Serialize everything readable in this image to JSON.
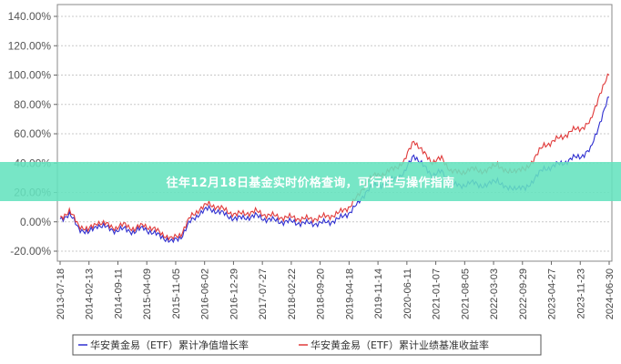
{
  "banner": {
    "title": "往年12月18日基金实时价格查询，可行性与操作指南"
  },
  "colors": {
    "nav_line": "#2f2fd0",
    "benchmark_line": "#e03a3a",
    "banner": "#64e2be",
    "grid": "#c8c8c8",
    "frame": "#888888"
  },
  "chart_data": {
    "type": "line",
    "title": "",
    "xlabel": "",
    "ylabel": "",
    "ylim": [
      -20,
      140
    ],
    "grid": true,
    "legend_position": "bottom",
    "y_ticks": [
      "140.00%",
      "120.00%",
      "100.00%",
      "80.00%",
      "60.00%",
      "40.00%",
      "20.00%",
      "0.00%",
      "-20.00%"
    ],
    "x_ticks": [
      "2013-07-18",
      "2014-02-13",
      "2014-09-11",
      "2015-04-09",
      "2015-11-05",
      "2016-06-02",
      "2016-12-29",
      "2017-07-27",
      "2018-02-22",
      "2018-09-20",
      "2019-04-18",
      "2019-11-14",
      "2020-06-11",
      "2021-01-07",
      "2021-08-05",
      "2022-03-03",
      "2022-09-29",
      "2023-04-27",
      "2023-11-23",
      "2024-06-30"
    ],
    "series": [
      {
        "name": "华安黄金易（ETF）累计净值增长率",
        "color": "#2f2fd0",
        "x": [
          "2013-07-18",
          "2013-09",
          "2013-11",
          "2014-02-13",
          "2014-05",
          "2014-07",
          "2014-09-11",
          "2014-11",
          "2015-02",
          "2015-04-09",
          "2015-06",
          "2015-08",
          "2015-11-05",
          "2015-12",
          "2016-02",
          "2016-04",
          "2016-06-02",
          "2016-08",
          "2016-10",
          "2016-12-29",
          "2017-03",
          "2017-05",
          "2017-07-27",
          "2017-09",
          "2017-12",
          "2018-02-22",
          "2018-05",
          "2018-07",
          "2018-09-20",
          "2018-12",
          "2019-02",
          "2019-04-18",
          "2019-06",
          "2019-08",
          "2019-11-14",
          "2020-01",
          "2020-03",
          "2020-06-11",
          "2020-08",
          "2020-10",
          "2021-01-07",
          "2021-03",
          "2021-06",
          "2021-08-05",
          "2021-10",
          "2021-12",
          "2022-03-03",
          "2022-05",
          "2022-07",
          "2022-09-29",
          "2022-12",
          "2023-02",
          "2023-04-27",
          "2023-06",
          "2023-09",
          "2023-11-23",
          "2024-01",
          "2024-03",
          "2024-05",
          "2024-06-30"
        ],
        "values": [
          2,
          5,
          -4,
          -8,
          -2,
          -4,
          -6,
          -5,
          -7,
          -4,
          -8,
          -10,
          -14,
          -10,
          0,
          6,
          9,
          7,
          4,
          2,
          3,
          4,
          2,
          1,
          0,
          0,
          -1,
          -1,
          -1,
          0,
          2,
          6,
          12,
          22,
          25,
          26,
          30,
          33,
          46,
          38,
          32,
          34,
          26,
          24,
          27,
          25,
          25,
          29,
          22,
          24,
          22,
          30,
          36,
          38,
          40,
          43,
          45,
          49,
          68,
          85
        ],
        "values_display": "累计净值增长率 (%)"
      },
      {
        "name": "华安黄金易（ETF）累计业绩基准收益率",
        "color": "#e03a3a",
        "x": [
          "2013-07-18",
          "2013-09",
          "2013-11",
          "2014-02-13",
          "2014-05",
          "2014-07",
          "2014-09-11",
          "2014-11",
          "2015-02",
          "2015-04-09",
          "2015-06",
          "2015-08",
          "2015-11-05",
          "2015-12",
          "2016-02",
          "2016-04",
          "2016-06-02",
          "2016-08",
          "2016-10",
          "2016-12-29",
          "2017-03",
          "2017-05",
          "2017-07-27",
          "2017-09",
          "2017-12",
          "2018-02-22",
          "2018-05",
          "2018-07",
          "2018-09-20",
          "2018-12",
          "2019-02",
          "2019-04-18",
          "2019-06",
          "2019-08",
          "2019-11-14",
          "2020-01",
          "2020-03",
          "2020-06-11",
          "2020-08",
          "2020-10",
          "2021-01-07",
          "2021-03",
          "2021-06",
          "2021-08-05",
          "2021-10",
          "2021-12",
          "2022-03-03",
          "2022-05",
          "2022-07",
          "2022-09-29",
          "2022-12",
          "2023-02",
          "2023-04-27",
          "2023-06",
          "2023-09",
          "2023-11-23",
          "2024-01",
          "2024-03",
          "2024-05",
          "2024-06-30"
        ],
        "values": [
          3,
          7,
          -2,
          -6,
          0,
          -2,
          -4,
          -2,
          -5,
          -2,
          -5,
          -8,
          -12,
          -8,
          3,
          9,
          12,
          10,
          7,
          5,
          6,
          7,
          5,
          4,
          3,
          3,
          2,
          2,
          3,
          4,
          6,
          10,
          17,
          28,
          32,
          33,
          37,
          41,
          56,
          47,
          41,
          43,
          35,
          33,
          36,
          35,
          35,
          40,
          33,
          36,
          35,
          44,
          52,
          55,
          58,
          62,
          64,
          68,
          88,
          100
        ]
      }
    ]
  },
  "legend": {
    "items": [
      {
        "label": "华安黄金易（ETF）累计净值增长率",
        "color": "#2f2fd0"
      },
      {
        "label": "华安黄金易（ETF）累计业绩基准收益率",
        "color": "#e03a3a"
      }
    ]
  }
}
